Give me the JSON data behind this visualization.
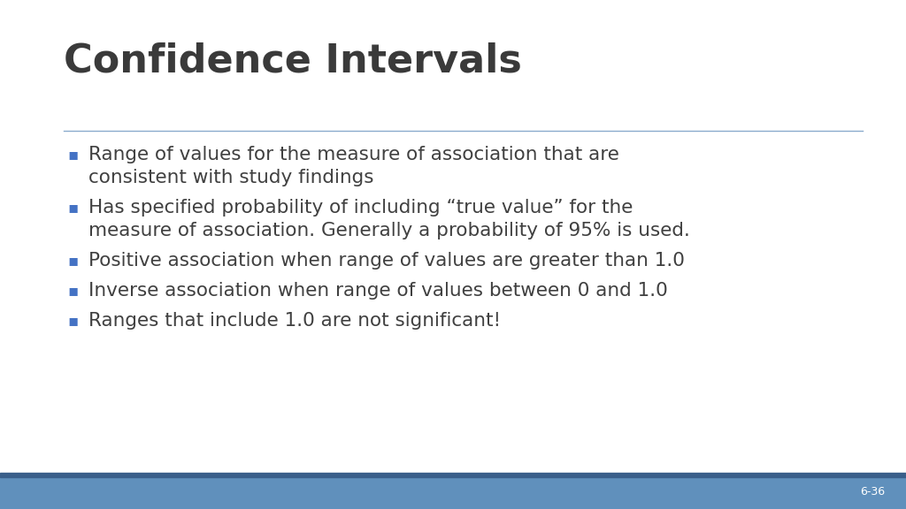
{
  "title": "Confidence Intervals",
  "title_fontsize": 32,
  "title_color": "#3a3a3a",
  "separator_color": "#8aabcc",
  "bullet_color": "#4472c4",
  "text_color": "#404040",
  "text_fontsize": 15.5,
  "footer_bg_color": "#6090bc",
  "footer_dark_line_color": "#3a5f8a",
  "footer_text": "6-36",
  "footer_text_color": "#ffffff",
  "footer_text_fontsize": 9,
  "bg_color": "#ffffff",
  "bullets": [
    [
      "Range of values for the measure of association that are",
      "consistent with study findings"
    ],
    [
      "Has specified probability of including “true value” for the",
      "measure of association. Generally a probability of 95% is used."
    ],
    [
      "Positive association when range of values are greater than 1.0"
    ],
    [
      "Inverse association when range of values between 0 and 1.0"
    ],
    [
      "Ranges that include 1.0 are not significant!"
    ]
  ]
}
